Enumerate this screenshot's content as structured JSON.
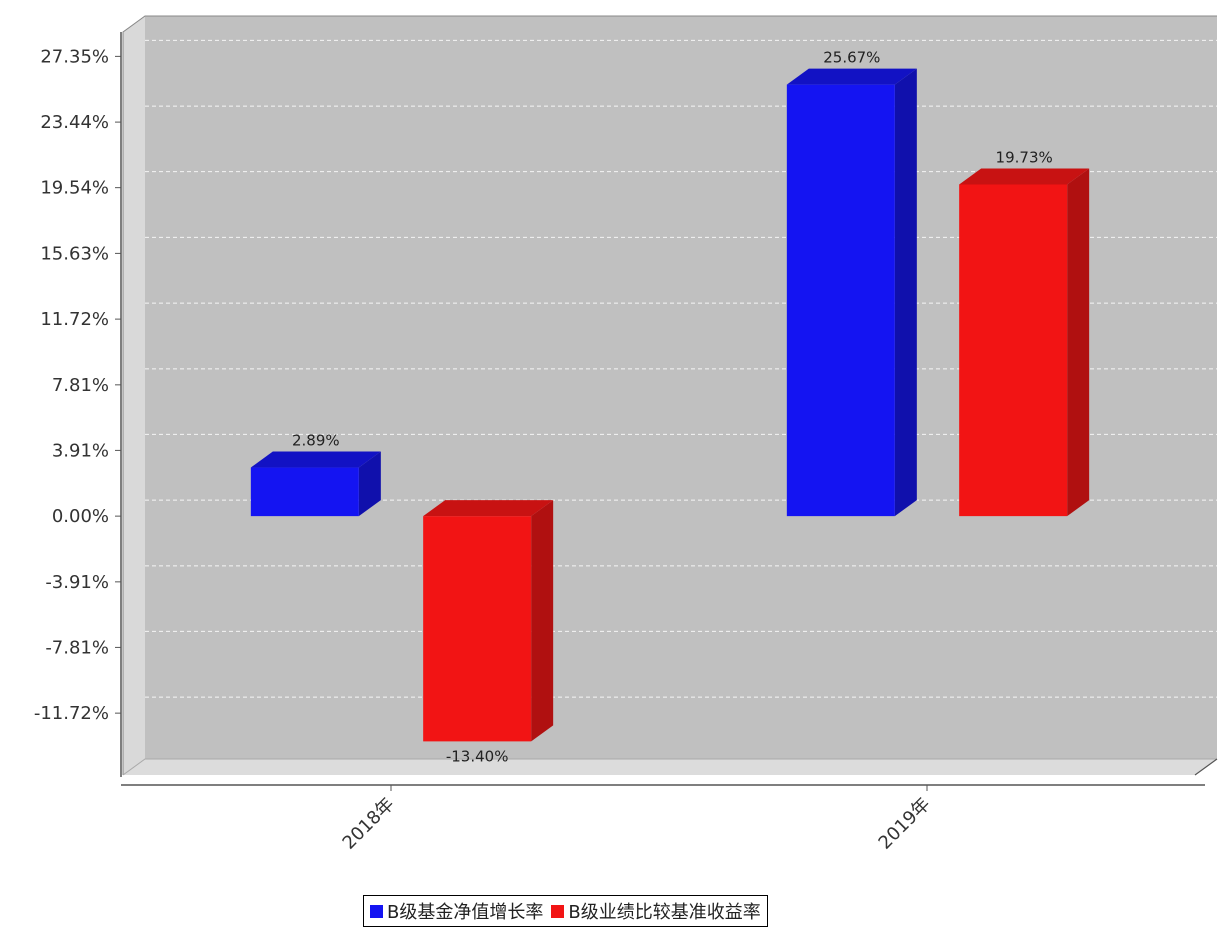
{
  "chart_data": {
    "type": "bar",
    "categories": [
      "2018年",
      "2019年"
    ],
    "series": [
      {
        "name": "B级基金净值增长率",
        "values": [
          2.89,
          25.67
        ],
        "color": "#1414f2",
        "side_color": "#1010ac",
        "top_color": "#1212c4"
      },
      {
        "name": "B级业绩比较基准收益率",
        "values": [
          -13.4,
          19.73
        ],
        "color": "#f21414",
        "side_color": "#b01010",
        "top_color": "#c81212"
      }
    ],
    "data_labels": [
      [
        "2.89%",
        "25.67%"
      ],
      [
        "-13.40%",
        "19.73%"
      ]
    ],
    "y_ticks": [
      27.35,
      23.44,
      19.54,
      15.63,
      11.72,
      7.81,
      3.91,
      0.0,
      -3.91,
      -7.81,
      -11.72
    ],
    "y_tick_labels": [
      "27.35%",
      "23.44%",
      "19.54%",
      "15.63%",
      "11.72%",
      "7.81%",
      "3.91%",
      "0.00%",
      "-3.91%",
      "-7.81%",
      "-11.72%"
    ],
    "ylim": [
      -15.4,
      28.8
    ],
    "grid": true,
    "legend_position": "bottom-center",
    "plot_background": "#c0c0c0"
  }
}
